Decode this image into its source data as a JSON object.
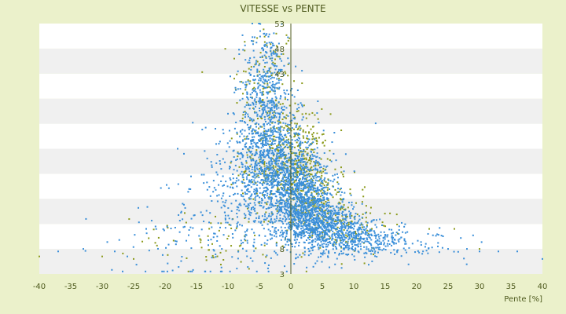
{
  "chart_data": {
    "type": "scatter",
    "title": "VITESSE vs PENTE",
    "xlabel": "Pente [%]",
    "ylabel": "",
    "xlim": [
      -40,
      40
    ],
    "ylim": [
      3,
      53
    ],
    "xticks": [
      -40,
      -35,
      -30,
      -25,
      -20,
      -15,
      -10,
      -5,
      0,
      5,
      10,
      15,
      20,
      25,
      30,
      35,
      40
    ],
    "yticks": [
      3,
      8,
      13,
      18,
      23,
      28,
      33,
      38,
      43,
      48,
      53
    ],
    "ytick_labels": [
      "3",
      "8",
      "",
      "",
      "",
      "",
      "",
      "",
      "43",
      "48",
      "53"
    ],
    "grid": "alternating horizontal bands",
    "legend": "none",
    "series": [
      {
        "color": "#8b9a1b",
        "clusters": [
          {
            "cx": -4,
            "cy": 40,
            "sx": 2.5,
            "sy": 7,
            "n": 140
          },
          {
            "cx": -2,
            "cy": 25,
            "sx": 3,
            "sy": 5,
            "n": 260
          },
          {
            "cx": 2,
            "cy": 25,
            "sx": 2,
            "sy": 5,
            "n": 200
          },
          {
            "cx": 4,
            "cy": 17,
            "sx": 3,
            "sy": 4,
            "n": 180
          },
          {
            "cx": 8,
            "cy": 13,
            "sx": 4,
            "sy": 3,
            "n": 110
          },
          {
            "cx": -12,
            "cy": 10,
            "sx": 6,
            "sy": 3,
            "n": 60
          }
        ],
        "points": [
          [
            -40,
            6.5
          ],
          [
            -30,
            6.5
          ],
          [
            -25,
            6
          ],
          [
            22,
            12
          ],
          [
            26,
            12
          ],
          [
            30,
            8
          ],
          [
            -9,
            46
          ],
          [
            -9,
            42
          ],
          [
            -6,
            40
          ],
          [
            1,
            33
          ]
        ]
      },
      {
        "color": "#3a8fd9",
        "clusters": [
          {
            "cx": -4,
            "cy": 41,
            "sx": 1.8,
            "sy": 6,
            "n": 320
          },
          {
            "cx": -3,
            "cy": 27,
            "sx": 2.5,
            "sy": 7,
            "n": 700
          },
          {
            "cx": -1,
            "cy": 20,
            "sx": 4,
            "sy": 6,
            "n": 500
          },
          {
            "cx": 2,
            "cy": 18,
            "sx": 2.5,
            "sy": 4,
            "n": 700
          },
          {
            "cx": 5,
            "cy": 13,
            "sx": 3,
            "sy": 2.5,
            "n": 550
          },
          {
            "cx": 10,
            "cy": 10,
            "sx": 4,
            "sy": 1.8,
            "n": 380
          },
          {
            "cx": -8,
            "cy": 22,
            "sx": 3,
            "sy": 7,
            "n": 220
          },
          {
            "cx": -15,
            "cy": 12,
            "sx": 6,
            "sy": 6,
            "n": 120
          },
          {
            "cx": 18,
            "cy": 9,
            "sx": 5,
            "sy": 1.5,
            "n": 80
          }
        ],
        "points": [
          [
            -37,
            7.5
          ],
          [
            -33,
            8
          ],
          [
            -28,
            7.5
          ],
          [
            -26,
            6.5
          ],
          [
            -23,
            12
          ],
          [
            -18,
            28
          ],
          [
            -17,
            27
          ],
          [
            -12,
            32
          ],
          [
            -10,
            35
          ],
          [
            -5,
            53
          ],
          [
            25,
            8
          ],
          [
            28,
            8
          ],
          [
            30,
            7.5
          ],
          [
            33,
            7.5
          ],
          [
            36,
            7.5
          ],
          [
            40,
            6
          ]
        ]
      }
    ]
  }
}
